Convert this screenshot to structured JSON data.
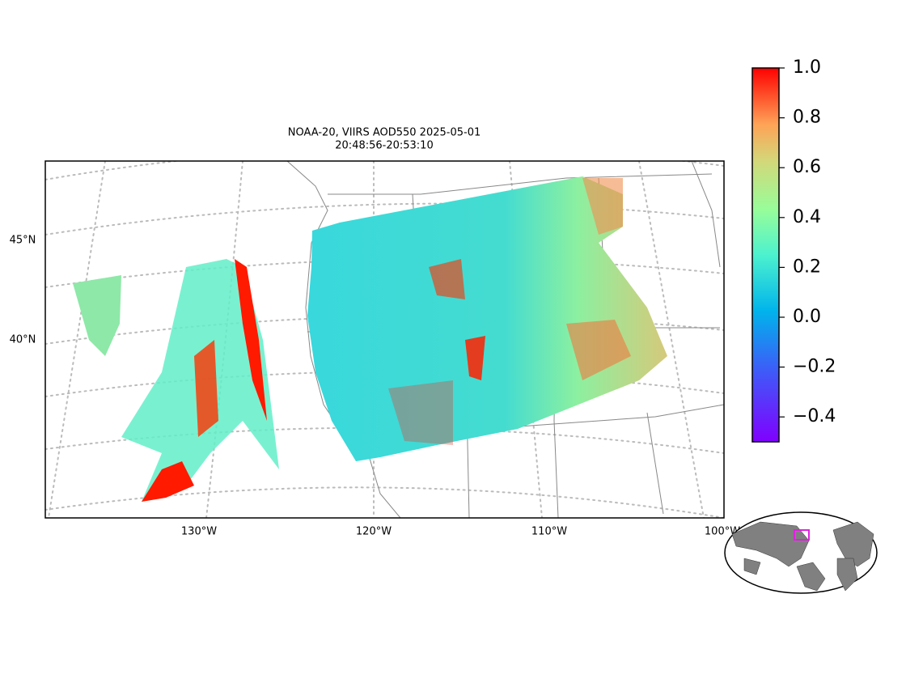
{
  "map": {
    "title": "NOAA-20, VIIRS AOD550 2025-05-01",
    "subtitle": "20:48:56-20:53:10",
    "lat_labels": [
      "45°N",
      "40°N"
    ],
    "lon_labels": [
      "130°W",
      "120°W",
      "110°W",
      "100°W"
    ]
  },
  "colorbar": {
    "lim": [
      -0.5,
      1.0
    ],
    "ticks": [
      {
        "value": -0.4,
        "label": "−0.4"
      },
      {
        "value": -0.2,
        "label": "−0.2"
      },
      {
        "value": 0.0,
        "label": "0.0"
      },
      {
        "value": 0.2,
        "label": "0.2"
      },
      {
        "value": 0.4,
        "label": "0.4"
      },
      {
        "value": 0.6,
        "label": "0.6"
      },
      {
        "value": 0.8,
        "label": "0.8"
      },
      {
        "value": 1.0,
        "label": "1.0"
      }
    ]
  }
}
